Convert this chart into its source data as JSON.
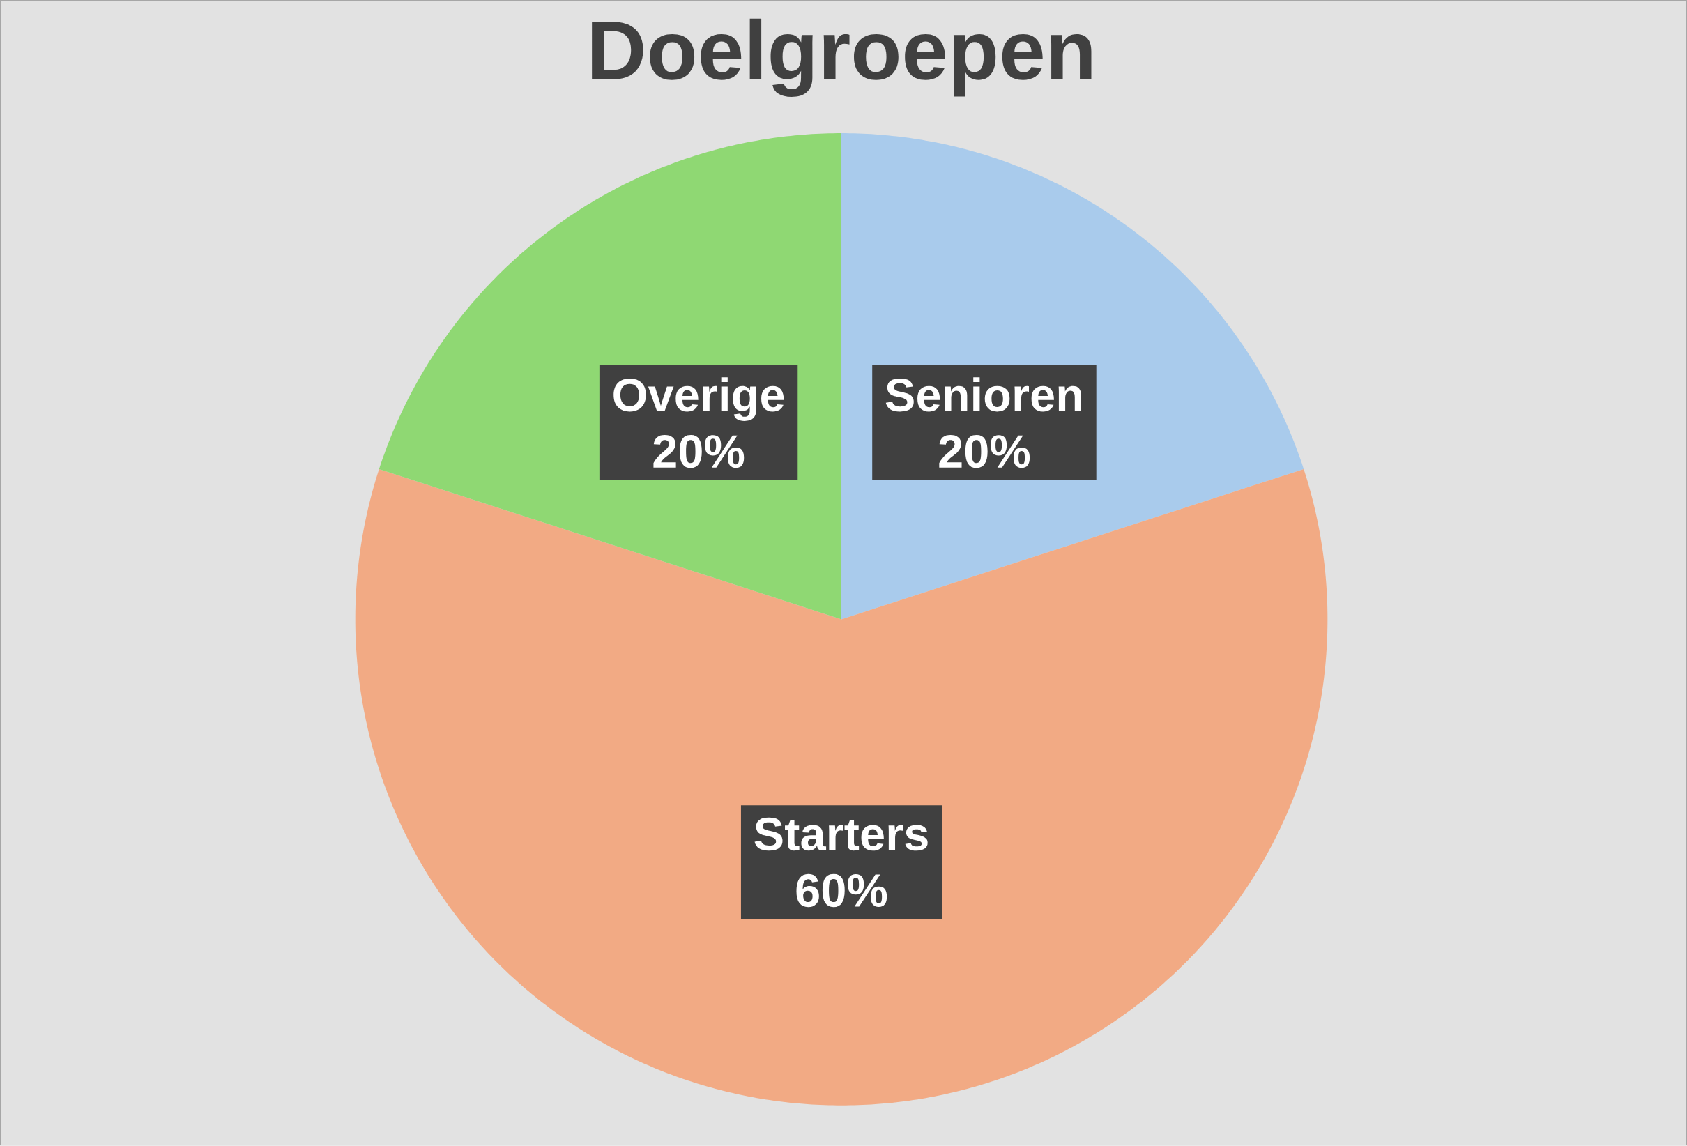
{
  "chart_data": {
    "type": "pie",
    "title": "Doelgroepen",
    "categories": [
      "Senioren",
      "Starters",
      "Overige"
    ],
    "values": [
      20,
      60,
      20
    ],
    "value_labels": [
      "20%",
      "60%",
      "20%"
    ],
    "colors": [
      "#a9cbec",
      "#f2aa84",
      "#8fd873"
    ]
  }
}
